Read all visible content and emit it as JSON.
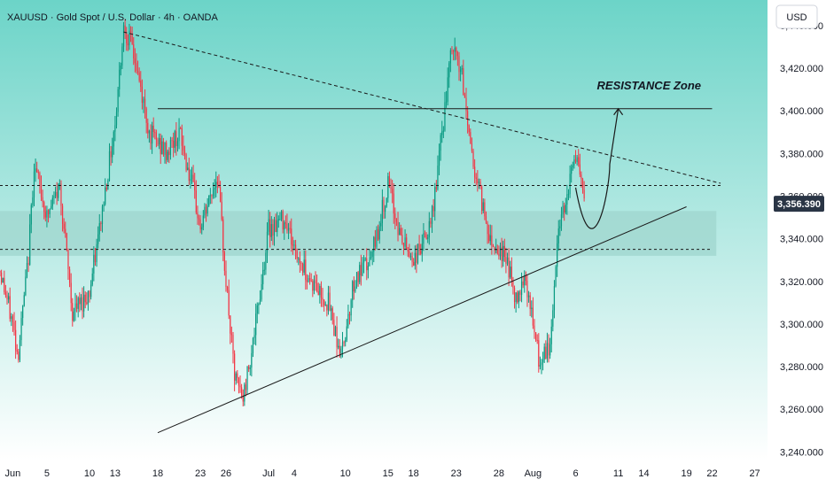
{
  "chart_data": {
    "type": "candlestick",
    "title": "XAUUSD · Gold Spot / U.S. Dollar · 4h · OANDA",
    "currency": "USD",
    "last_price": "3,356.390",
    "ylim": [
      3236,
      3452
    ],
    "y_ticks": [
      {
        "value": 3440,
        "label": "3,440.000"
      },
      {
        "value": 3420,
        "label": "3,420.000"
      },
      {
        "value": 3400,
        "label": "3,400.000"
      },
      {
        "value": 3380,
        "label": "3,380.000"
      },
      {
        "value": 3360,
        "label": "3,360.000"
      },
      {
        "value": 3340,
        "label": "3,340.000"
      },
      {
        "value": 3320,
        "label": "3,320.000"
      },
      {
        "value": 3300,
        "label": "3,300.000"
      },
      {
        "value": 3280,
        "label": "3,280.000"
      },
      {
        "value": 3260,
        "label": "3,260.000"
      },
      {
        "value": 3240,
        "label": "3,240.000"
      }
    ],
    "x_ticks": [
      "Jun",
      "5",
      "10",
      "13",
      "18",
      "23",
      "26",
      "Jul",
      "4",
      "10",
      "15",
      "18",
      "23",
      "28",
      "Aug",
      "6",
      "11",
      "14",
      "19",
      "22",
      "27"
    ],
    "x_tick_days": [
      0,
      4,
      9,
      12,
      17,
      22,
      25,
      30,
      33,
      39,
      44,
      47,
      52,
      57,
      61,
      66,
      71,
      74,
      79,
      82,
      87
    ],
    "x_range_days": [
      -1.5,
      88.5
    ],
    "colors": {
      "up": "#089981",
      "down": "#f23645",
      "bg_top": "#6cd4c8",
      "bg_bottom": "#ffffff",
      "zone": "#9fd6cd",
      "line": "#1a1a1a",
      "price_label": "#2a3545"
    },
    "annotations": [
      {
        "text": "RESISTANCE Zone",
        "day": 68.5,
        "value": 3405
      }
    ],
    "resistance_line": {
      "from_day": 17,
      "to_day": 82,
      "value": 3401
    },
    "descending_trendline": {
      "from": [
        13,
        3437
      ],
      "to": [
        83,
        3366
      ]
    },
    "ascending_trendline": {
      "from": [
        17,
        3249
      ],
      "to": [
        79,
        3355
      ]
    },
    "dashed_levels": [
      {
        "from_day": -1.5,
        "to_day": 83,
        "value": 3365
      },
      {
        "from_day": -1.5,
        "to_day": 82,
        "value": 3335
      }
    ],
    "zone": {
      "from_day": -1.5,
      "to_day": 82.5,
      "low": 3332,
      "high": 3353
    },
    "projection_path": [
      [
        66,
        3364
      ],
      [
        68,
        3333
      ],
      [
        70,
        3375
      ],
      [
        71,
        3401
      ]
    ],
    "price_anchors": [
      [
        -1.5,
        3325
      ],
      [
        0,
        3300
      ],
      [
        0.6,
        3285
      ],
      [
        1.8,
        3330
      ],
      [
        2.5,
        3375
      ],
      [
        4,
        3350
      ],
      [
        5.5,
        3365
      ],
      [
        7,
        3305
      ],
      [
        9,
        3315
      ],
      [
        10,
        3340
      ],
      [
        12,
        3395
      ],
      [
        13,
        3440
      ],
      [
        14,
        3430
      ],
      [
        16,
        3390
      ],
      [
        18,
        3380
      ],
      [
        19.5,
        3390
      ],
      [
        21,
        3365
      ],
      [
        22,
        3345
      ],
      [
        24,
        3370
      ],
      [
        25,
        3320
      ],
      [
        26,
        3275
      ],
      [
        27,
        3265
      ],
      [
        28.5,
        3300
      ],
      [
        30,
        3345
      ],
      [
        32,
        3350
      ],
      [
        33,
        3335
      ],
      [
        35,
        3320
      ],
      [
        37,
        3310
      ],
      [
        38.5,
        3285
      ],
      [
        40,
        3320
      ],
      [
        42,
        3330
      ],
      [
        44,
        3365
      ],
      [
        45.5,
        3340
      ],
      [
        47,
        3330
      ],
      [
        49,
        3345
      ],
      [
        50.5,
        3395
      ],
      [
        51.5,
        3430
      ],
      [
        52.5,
        3420
      ],
      [
        54,
        3375
      ],
      [
        56,
        3340
      ],
      [
        58,
        3330
      ],
      [
        59,
        3310
      ],
      [
        60,
        3325
      ],
      [
        61,
        3300
      ],
      [
        61.8,
        3280
      ],
      [
        63,
        3290
      ],
      [
        64,
        3345
      ],
      [
        66,
        3380
      ],
      [
        67,
        3356
      ]
    ],
    "last_day": 67
  }
}
